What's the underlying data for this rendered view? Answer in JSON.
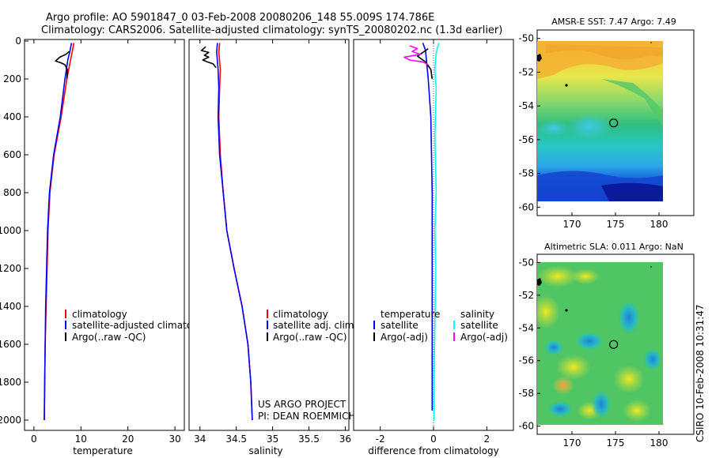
{
  "header": {
    "line1": "Argo profile: AO 5901847_0 03-Feb-2008 20080206_148 55.009S 174.786E",
    "line2": "Climatology: CARS2006. Satellite-adjusted climatology: synTS_20080202.nc (1.3d earlier)"
  },
  "side_label": "CSIRO 10-Feb-2008 10:31:47",
  "chart_data": [
    {
      "type": "line",
      "panel": "temperature",
      "xlabel": "temperature",
      "ylabel": "",
      "xlim": [
        -2,
        32
      ],
      "ylim": [
        2050,
        0
      ],
      "x_ticks": [
        0,
        10,
        20,
        30
      ],
      "x_tick_labels": [
        "0",
        "10",
        "20",
        "30"
      ],
      "y_ticks": [
        0,
        200,
        400,
        600,
        800,
        1000,
        1200,
        1400,
        1600,
        1800,
        2000
      ],
      "y_tick_labels": [
        "0",
        "200",
        "400",
        "600",
        "800",
        "1000",
        "1200",
        "1400",
        "1600",
        "1800",
        "2000"
      ],
      "legend": [
        "climatology",
        "satellite-adjusted climatology",
        "Argo(..raw -QC)"
      ],
      "series": [
        {
          "name": "climatology",
          "color": "#ff0000",
          "x": [
            8.5,
            8.2,
            7.8,
            7.0,
            5.8,
            4.3,
            3.4,
            3.0,
            2.8,
            2.6,
            2.4,
            2.3,
            2.2
          ],
          "y": [
            10,
            50,
            100,
            200,
            400,
            600,
            800,
            1000,
            1200,
            1400,
            1600,
            1800,
            2000
          ]
        },
        {
          "name": "satellite-adjusted climatology",
          "color": "#0000ff",
          "x": [
            8.0,
            7.7,
            7.2,
            6.6,
            5.6,
            4.2,
            3.3,
            2.9,
            2.7,
            2.5,
            2.4,
            2.3,
            2.2
          ],
          "y": [
            10,
            50,
            100,
            200,
            400,
            600,
            800,
            1000,
            1200,
            1400,
            1600,
            1800,
            2000
          ]
        },
        {
          "name": "Argo(..raw -QC)",
          "color": "#000000",
          "x": [
            7.5,
            6.8,
            5.5,
            4.6,
            5.8,
            6.6,
            7.1,
            7.0
          ],
          "y": [
            55,
            70,
            85,
            105,
            115,
            125,
            150,
            200
          ]
        }
      ]
    },
    {
      "type": "line",
      "panel": "salinity",
      "xlabel": "salinity",
      "ylabel": "",
      "xlim": [
        33.85,
        36.05
      ],
      "ylim": [
        2050,
        0
      ],
      "x_ticks": [
        34,
        34.5,
        35,
        35.5,
        36
      ],
      "x_tick_labels": [
        "34",
        "34.5",
        "35",
        "35.5",
        "36"
      ],
      "legend": [
        "climatology",
        "satellite adj. clim.",
        "Argo(..raw -QC)"
      ],
      "series": [
        {
          "name": "climatology",
          "color": "#ff0000",
          "x": [
            34.27,
            34.26,
            34.28,
            34.27,
            34.26,
            34.28,
            34.32,
            34.37,
            34.47,
            34.58,
            34.66,
            34.7,
            34.72
          ],
          "y": [
            10,
            60,
            150,
            250,
            400,
            600,
            800,
            1000,
            1200,
            1400,
            1600,
            1800,
            2000
          ]
        },
        {
          "name": "satellite adj. clim.",
          "color": "#0000ff",
          "x": [
            34.24,
            34.23,
            34.25,
            34.26,
            34.25,
            34.27,
            34.32,
            34.37,
            34.47,
            34.58,
            34.66,
            34.7,
            34.72
          ],
          "y": [
            10,
            60,
            150,
            250,
            400,
            600,
            800,
            1000,
            1200,
            1400,
            1600,
            1800,
            2000
          ]
        },
        {
          "name": "Argo(..raw -QC)",
          "color": "#000000",
          "x": [
            34.08,
            34.02,
            34.12,
            34.06,
            34.12,
            34.04,
            34.1,
            34.18,
            34.22
          ],
          "y": [
            30,
            50,
            60,
            75,
            85,
            100,
            110,
            120,
            140
          ]
        }
      ]
    },
    {
      "type": "line",
      "panel": "difference",
      "xlabel": "difference from climatology",
      "ylabel": "",
      "xlim": [
        -3.0,
        3.0
      ],
      "ylim": [
        2050,
        0
      ],
      "x_ticks": [
        -2,
        0,
        2
      ],
      "x_tick_labels": [
        "-2",
        "0",
        "2"
      ],
      "legend_left": {
        "title": "temperature",
        "items": [
          "satellite",
          "Argo(-adj)"
        ]
      },
      "legend_right": {
        "title": "salinity",
        "items": [
          "satellite",
          "Argo(-adj)"
        ]
      },
      "series": [
        {
          "name": "temperature satellite",
          "color": "#0000ff",
          "x": [
            -0.4,
            -0.3,
            -0.2,
            -0.1,
            -0.05,
            -0.05,
            -0.05,
            -0.05,
            -0.05
          ],
          "y": [
            10,
            50,
            200,
            400,
            800,
            1200,
            1600,
            1800,
            1950
          ]
        },
        {
          "name": "temperature Argo(-adj)",
          "color": "#000000",
          "x": [
            -0.2,
            -0.4,
            -0.6,
            -0.4,
            -0.3,
            -0.1,
            -0.05
          ],
          "y": [
            40,
            60,
            80,
            100,
            110,
            150,
            200
          ]
        },
        {
          "name": "salinity satellite",
          "color": "#00ffff",
          "x": [
            0.2,
            0.1,
            0.05,
            0.1,
            0.05,
            0.1,
            0.05,
            0.08,
            0.05,
            0.02,
            0.02
          ],
          "y": [
            10,
            60,
            150,
            250,
            500,
            800,
            1000,
            1200,
            1500,
            1800,
            2000
          ]
        },
        {
          "name": "salinity Argo(-adj)",
          "color": "#ff00ff",
          "x": [
            -0.9,
            -0.6,
            -0.8,
            -0.5,
            -1.1,
            -0.9,
            -0.4,
            -0.2
          ],
          "y": [
            25,
            40,
            55,
            70,
            85,
            100,
            110,
            125
          ]
        }
      ]
    },
    {
      "type": "heatmap",
      "panel": "sst-map",
      "title": "AMSR-E SST: 7.47 Argo: 7.49",
      "xlim": [
        166,
        184
      ],
      "ylim": [
        -60.5,
        -49.5
      ],
      "x_ticks": [
        170,
        175,
        180
      ],
      "x_tick_labels": [
        "170",
        "175",
        "180"
      ],
      "y_ticks": [
        -50,
        -52,
        -54,
        -56,
        -58,
        -60
      ],
      "y_tick_labels": [
        "-50",
        "-52",
        "-54",
        "-56",
        "-58",
        "-60"
      ],
      "marker": {
        "lon": 174.786,
        "lat": -55.009
      }
    },
    {
      "type": "heatmap",
      "panel": "sla-map",
      "title": "Altimetric SLA: 0.011 Argo: NaN",
      "xlim": [
        166,
        184
      ],
      "ylim": [
        -60.5,
        -49.5
      ],
      "x_ticks": [
        170,
        175,
        180
      ],
      "x_tick_labels": [
        "170",
        "175",
        "180"
      ],
      "y_ticks": [
        -50,
        -52,
        -54,
        -56,
        -58,
        -60
      ],
      "y_tick_labels": [
        "-50",
        "-52",
        "-54",
        "-56",
        "-58",
        "-60"
      ],
      "marker": {
        "lon": 174.786,
        "lat": -55.009
      }
    }
  ],
  "annotations": {
    "project": "US ARGO PROJECT",
    "pi": "PI: DEAN ROEMMICH"
  }
}
